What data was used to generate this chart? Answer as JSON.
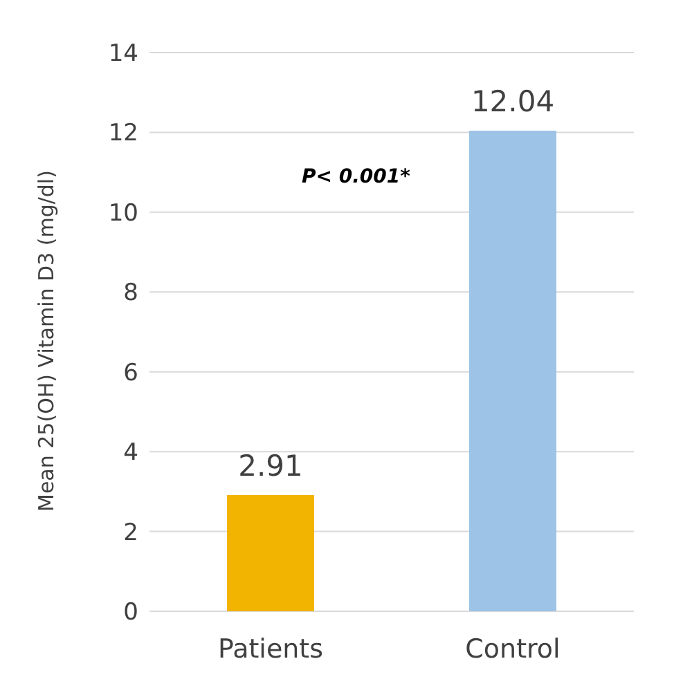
{
  "chart_data": {
    "type": "bar",
    "ylabel": "Mean 25(OH) Vitamin D3 (mg/dl)",
    "categories": [
      "Patients",
      "Control"
    ],
    "values": [
      2.91,
      12.04
    ],
    "colors": [
      "#f2b400",
      "#9dc3e6"
    ],
    "ylim": [
      0,
      14
    ],
    "yticks": [
      0,
      2,
      4,
      6,
      8,
      10,
      12,
      14
    ],
    "grid": "y",
    "data_labels": true,
    "annotations": [
      "P< 0.001*"
    ]
  }
}
